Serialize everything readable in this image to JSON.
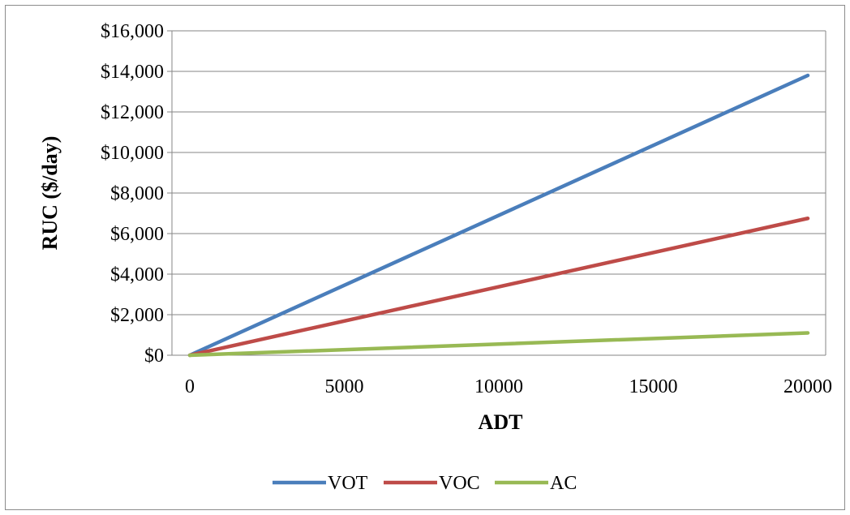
{
  "chart_data": {
    "type": "line",
    "title": "",
    "xlabel": "ADT",
    "ylabel": "RUC ($/day)",
    "x": [
      0,
      20000
    ],
    "xlim": [
      0,
      20000
    ],
    "ylim": [
      0,
      16000
    ],
    "x_ticks": [
      "0",
      "5000",
      "10000",
      "15000",
      "20000"
    ],
    "x_tick_values": [
      0,
      5000,
      10000,
      15000,
      20000
    ],
    "y_ticks": [
      "$0",
      "$2,000",
      "$4,000",
      "$6,000",
      "$8,000",
      "$10,000",
      "$12,000",
      "$14,000",
      "$16,000"
    ],
    "y_tick_values": [
      0,
      2000,
      4000,
      6000,
      8000,
      10000,
      12000,
      14000,
      16000
    ],
    "grid": true,
    "legend_position": "bottom",
    "series": [
      {
        "name": "VOT",
        "color": "#4a7ebb",
        "values": [
          0,
          13800
        ]
      },
      {
        "name": "VOC",
        "color": "#be4b48",
        "values": [
          0,
          6750
        ]
      },
      {
        "name": "AC",
        "color": "#98b954",
        "values": [
          0,
          1100
        ]
      }
    ]
  }
}
